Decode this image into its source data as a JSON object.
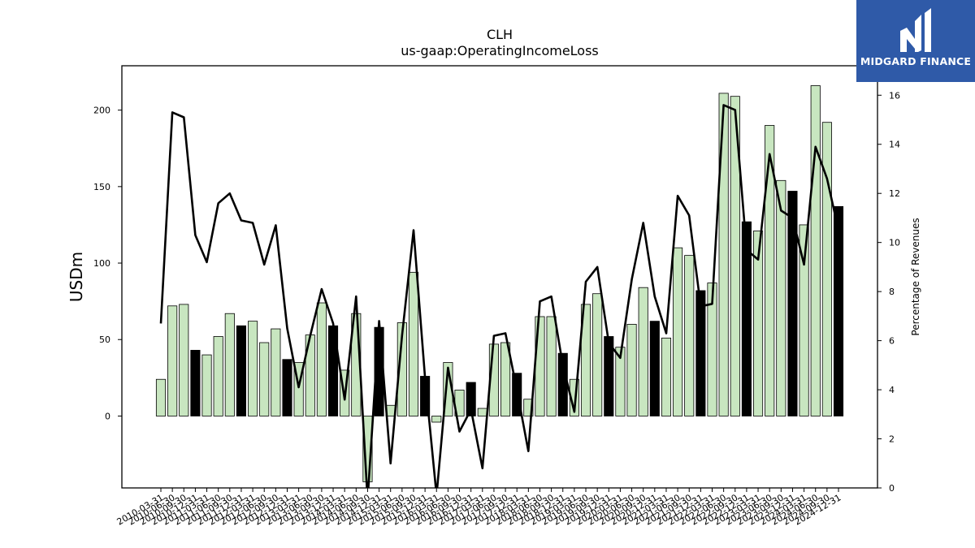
{
  "chart_data": {
    "type": "bar+line",
    "title": "CLH",
    "subtitle": "us-gaap:OperatingIncomeLoss",
    "ylabel_left": "USDm",
    "ylabel_right": "Percentage of Revenues",
    "ylim_left": [
      -47,
      229
    ],
    "ylim_right": [
      0,
      17.2
    ],
    "yticks_left": [
      0,
      50,
      100,
      150,
      200
    ],
    "yticks_right": [
      0,
      2,
      4,
      6,
      8,
      10,
      12,
      14,
      16
    ],
    "categories": [
      "2010-03-31",
      "2010-06-30",
      "2010-09-30",
      "2010-12-31",
      "2011-03-31",
      "2011-06-30",
      "2011-09-30",
      "2011-12-31",
      "2012-03-31",
      "2012-06-30",
      "2012-09-30",
      "2012-12-31",
      "2013-03-31",
      "2013-06-30",
      "2013-09-30",
      "2013-12-31",
      "2014-03-31",
      "2014-06-30",
      "2014-09-30",
      "2014-12-31",
      "2015-03-31",
      "2015-06-30",
      "2015-09-30",
      "2015-12-31",
      "2016-03-31",
      "2016-06-30",
      "2016-09-30",
      "2016-12-31",
      "2017-03-31",
      "2017-06-30",
      "2017-09-30",
      "2017-12-31",
      "2018-03-31",
      "2018-06-30",
      "2018-09-30",
      "2018-12-31",
      "2019-03-31",
      "2019-06-30",
      "2019-09-30",
      "2019-12-31",
      "2020-03-31",
      "2020-06-30",
      "2020-09-30",
      "2020-12-31",
      "2021-03-31",
      "2021-06-30",
      "2021-09-30",
      "2021-12-31",
      "2022-03-31",
      "2022-06-30",
      "2022-09-30",
      "2022-12-31",
      "2023-03-31",
      "2023-06-30",
      "2023-09-30",
      "2023-12-31",
      "2024-03-31",
      "2024-06-30",
      "2024-09-30",
      "2024-12-31"
    ],
    "series": [
      {
        "kind": "bar",
        "values": [
          24,
          72,
          73,
          43,
          40,
          52,
          67,
          59,
          62,
          48,
          57,
          37,
          35,
          53,
          74,
          59,
          30,
          67,
          -43,
          58,
          7,
          61,
          94,
          26,
          -4,
          35,
          17,
          22,
          5,
          47,
          48,
          28,
          11,
          65,
          65,
          41,
          24,
          73,
          80,
          52,
          45,
          60,
          84,
          62,
          51,
          110,
          105,
          82,
          87,
          211,
          209,
          127,
          121,
          190,
          154,
          147,
          125,
          216,
          192,
          137
        ],
        "dark_flags": [
          0,
          0,
          0,
          1,
          0,
          0,
          0,
          1,
          0,
          0,
          0,
          1,
          0,
          0,
          0,
          1,
          0,
          0,
          0,
          1,
          0,
          0,
          0,
          1,
          0,
          0,
          0,
          1,
          0,
          0,
          0,
          1,
          0,
          0,
          0,
          1,
          0,
          0,
          0,
          1,
          0,
          0,
          0,
          1,
          0,
          0,
          0,
          1,
          0,
          0,
          0,
          1,
          0,
          0,
          0,
          1,
          0,
          0,
          0,
          1
        ]
      },
      {
        "kind": "line",
        "axis": "right",
        "values": [
          6.7,
          15.3,
          15.1,
          10.3,
          9.2,
          11.6,
          12.0,
          10.9,
          10.8,
          9.1,
          10.7,
          6.5,
          4.1,
          6.2,
          8.1,
          6.7,
          3.6,
          7.8,
          -0.5,
          6.8,
          1.0,
          6.2,
          10.5,
          4.5,
          -0.3,
          4.9,
          2.3,
          3.2,
          0.8,
          6.2,
          6.3,
          4.0,
          1.5,
          7.6,
          7.8,
          5.0,
          3.1,
          8.4,
          9.0,
          5.9,
          5.3,
          8.5,
          10.8,
          7.8,
          6.3,
          11.9,
          11.1,
          7.4,
          7.5,
          15.6,
          15.4,
          9.7,
          9.3,
          13.6,
          11.3,
          11.0,
          9.1,
          13.9,
          12.6,
          10.5
        ]
      }
    ],
    "colors": {
      "bar_light": "#c8e6c0",
      "bar_dark": "#000000",
      "bar_edge": "#000000",
      "line": "#000000"
    }
  },
  "logo": {
    "text": "MIDGARD FINANCE",
    "background": "#2f5aa8"
  }
}
